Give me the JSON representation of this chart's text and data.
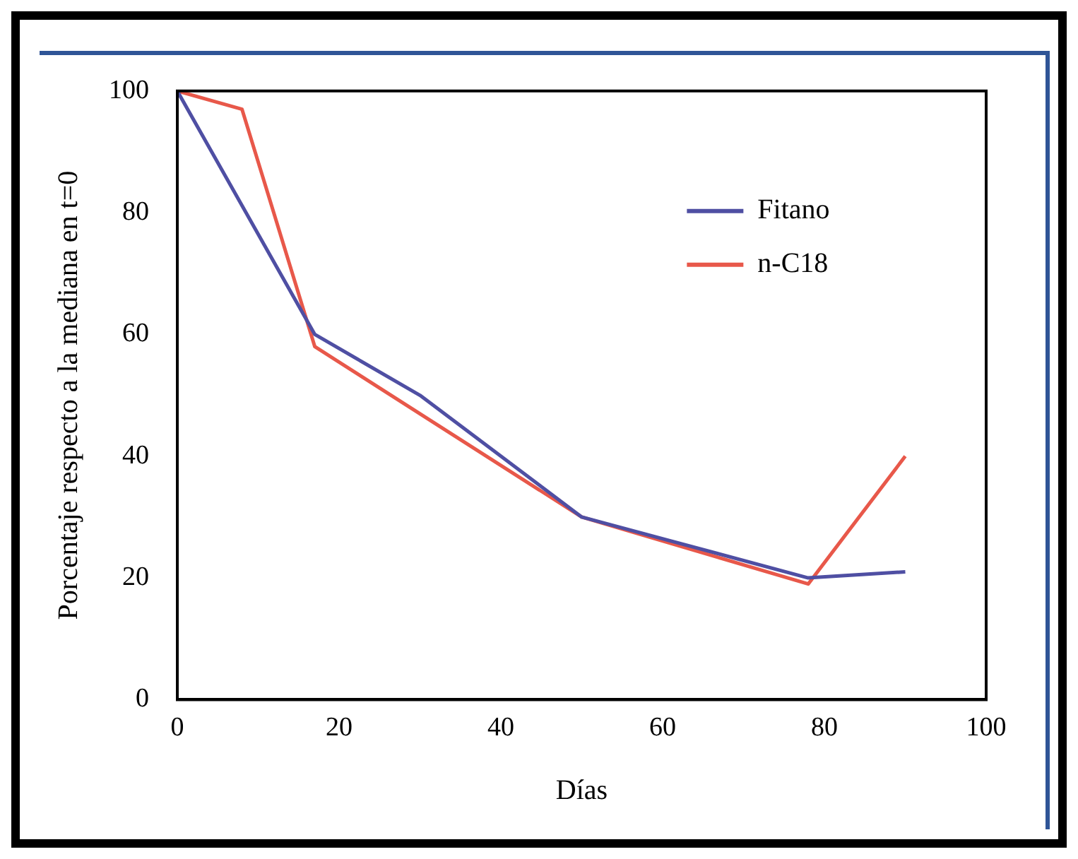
{
  "chart_data": {
    "type": "line",
    "xlabel": "Días",
    "ylabel": "Porcentaje respecto a la mediana en t=0",
    "xlim": [
      0,
      100
    ],
    "xticks": [
      0,
      20,
      40,
      60,
      80,
      100
    ],
    "ylim": [
      0,
      100
    ],
    "yticks": [
      0,
      20,
      40,
      60,
      80,
      100
    ],
    "grid": false,
    "legend": "top right",
    "marker": "none",
    "line_style": "solid",
    "series": [
      {
        "name": "Fitano",
        "color": "#4f4fa3",
        "x": [
          0,
          17,
          30,
          50,
          78,
          90
        ],
        "values": [
          100,
          60,
          50,
          30,
          20,
          21
        ]
      },
      {
        "name": "n-C18",
        "color": "#e8584a",
        "x": [
          0,
          8,
          17,
          50,
          78,
          90
        ],
        "values": [
          100,
          97,
          58,
          30,
          19,
          40
        ]
      }
    ]
  }
}
